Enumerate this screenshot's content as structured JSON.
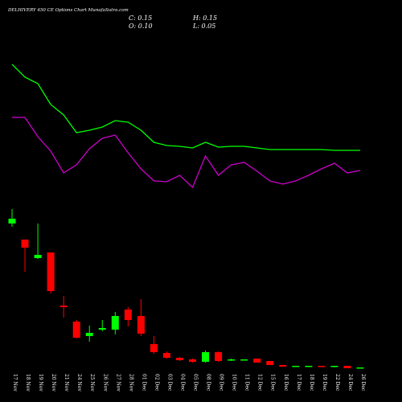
{
  "chart_data": {
    "type": "candlestick",
    "title": "DELHIVERY 450 CE Options Chart MunafaSutra.com",
    "annotations": [
      "C: 0.15",
      "H: 0.15",
      "O: 0.10",
      "L: 0.05"
    ],
    "categories": [
      "17 Nov",
      "18 Nov",
      "19 Nov",
      "20 Nov",
      "21 Nov",
      "24 Nov",
      "25 Nov",
      "26 Nov",
      "27 Nov",
      "28 Nov",
      "01 Dec",
      "02 Dec",
      "03 Dec",
      "04 Dec",
      "05 Dec",
      "08 Dec",
      "09 Dec",
      "10 Dec",
      "11 Dec",
      "12 Dec",
      "15 Dec",
      "16 Dec",
      "17 Dec",
      "18 Dec",
      "19 Dec",
      "22 Dec",
      "24 Dec",
      "26 Dec"
    ],
    "open": [
      9.6,
      8.6,
      7.45,
      7.8,
      4.5,
      3.5,
      2.6,
      3.0,
      3.0,
      4.25,
      3.85,
      2.1,
      1.55,
      1.25,
      1.15,
      1.0,
      1.6,
      1.1,
      1.1,
      1.2,
      1.05,
      0.8,
      0.7,
      0.7,
      0.75,
      0.7,
      0.75,
      0.6
    ],
    "high": [
      10.5,
      8.6,
      9.6,
      7.8,
      5.1,
      3.6,
      3.25,
      3.6,
      4.1,
      4.4,
      4.9,
      2.6,
      1.65,
      1.3,
      1.2,
      1.7,
      1.65,
      1.2,
      1.15,
      1.2,
      1.05,
      0.8,
      0.75,
      0.75,
      0.75,
      0.75,
      0.75,
      0.65
    ],
    "low": [
      9.4,
      6.6,
      7.4,
      5.25,
      3.75,
      2.45,
      2.25,
      2.9,
      2.7,
      3.2,
      2.6,
      1.5,
      1.2,
      1.05,
      0.95,
      0.95,
      1.0,
      1.05,
      1.1,
      0.95,
      0.8,
      0.7,
      0.7,
      0.7,
      0.7,
      0.65,
      0.6,
      0.6
    ],
    "close": [
      9.9,
      8.1,
      7.65,
      5.4,
      4.4,
      2.5,
      2.8,
      3.1,
      3.85,
      3.6,
      2.75,
      1.6,
      1.25,
      1.1,
      1.0,
      1.6,
      1.05,
      1.15,
      1.15,
      0.95,
      0.8,
      0.7,
      0.75,
      0.75,
      0.7,
      0.75,
      0.6,
      0.65
    ],
    "up_color": "#00ff00",
    "down_color": "#ff0000",
    "ylim": [
      0,
      11
    ],
    "series": [
      {
        "color": "#00ff00",
        "axis": "y2",
        "values": [
          8.5,
          7.7,
          7.3,
          6.0,
          5.35,
          4.25,
          4.4,
          4.6,
          5.0,
          4.9,
          4.4,
          3.65,
          3.45,
          3.4,
          3.3,
          3.65,
          3.35,
          3.4,
          3.4,
          3.3,
          3.2,
          3.2,
          3.2,
          3.2,
          3.2,
          3.15,
          3.15,
          3.15
        ]
      },
      {
        "color": "#cc00cc",
        "axis": "y2",
        "values": [
          5.2,
          5.2,
          4.0,
          3.1,
          1.75,
          2.25,
          3.25,
          3.9,
          4.1,
          3.0,
          2.0,
          1.25,
          1.2,
          1.6,
          0.85,
          2.8,
          1.6,
          2.25,
          2.4,
          1.85,
          1.25,
          1.05,
          1.25,
          1.6,
          2.0,
          2.35,
          1.75,
          1.9
        ]
      }
    ],
    "y2lim": [
      0,
      10
    ]
  }
}
